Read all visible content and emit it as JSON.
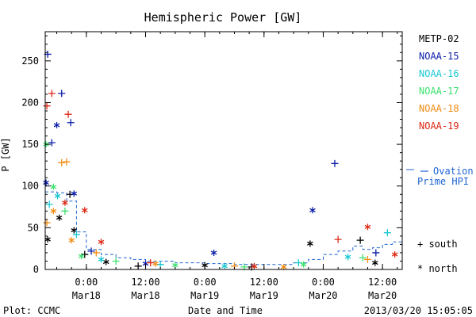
{
  "chart_data": {
    "type": "scatter",
    "title": "Hemispheric Power [GW]",
    "ylabel": "P [GW]",
    "xlabel": "Date and Time",
    "ylim": [
      0,
      285
    ],
    "xlim": [
      "2013-03-17 15:40",
      "2013-03-20 16:00"
    ],
    "yticks": [
      0,
      50,
      100,
      150,
      200,
      250
    ],
    "xticks": [
      {
        "t": "2013-03-18 00:00",
        "time": "0:00",
        "date": "Mar18"
      },
      {
        "t": "2013-03-18 12:00",
        "time": "12:00",
        "date": "Mar18"
      },
      {
        "t": "2013-03-19 00:00",
        "time": "0:00",
        "date": "Mar19"
      },
      {
        "t": "2013-03-19 12:00",
        "time": "12:00",
        "date": "Mar19"
      },
      {
        "t": "2013-03-20 00:00",
        "time": "0:00",
        "date": "Mar20"
      },
      {
        "t": "2013-03-20 12:00",
        "time": "12:00",
        "date": "Mar20"
      }
    ],
    "footer_left": "Plot: CCMC",
    "footer_right": "2013/03/20 15:05:05",
    "marker_legend": {
      "south": "+ south",
      "north": "* north"
    },
    "series": [
      {
        "name": "METP-02",
        "color": "#000000",
        "points": [
          {
            "t": "2013-03-17 16:10",
            "v": 36,
            "h": "n"
          },
          {
            "t": "2013-03-17 18:30",
            "v": 62,
            "h": "n"
          },
          {
            "t": "2013-03-17 20:40",
            "v": 90,
            "h": "s"
          },
          {
            "t": "2013-03-17 21:30",
            "v": 47,
            "h": "n"
          },
          {
            "t": "2013-03-17 23:40",
            "v": 18,
            "h": "s"
          },
          {
            "t": "2013-03-18 04:00",
            "v": 9,
            "h": "n"
          },
          {
            "t": "2013-03-18 10:30",
            "v": 4,
            "h": "s"
          },
          {
            "t": "2013-03-19 00:00",
            "v": 5,
            "h": "n"
          },
          {
            "t": "2013-03-19 09:30",
            "v": 3,
            "h": "s"
          },
          {
            "t": "2013-03-19 21:20",
            "v": 31,
            "h": "n"
          },
          {
            "t": "2013-03-20 07:30",
            "v": 35,
            "h": "s"
          },
          {
            "t": "2013-03-20 10:30",
            "v": 8,
            "h": "n"
          }
        ]
      },
      {
        "name": "NOAA-15",
        "color": "#0a1ca8",
        "points": [
          {
            "t": "2013-03-17 15:50",
            "v": 104,
            "h": "n"
          },
          {
            "t": "2013-03-17 16:10",
            "v": 258,
            "h": "s"
          },
          {
            "t": "2013-03-17 17:00",
            "v": 152,
            "h": "s"
          },
          {
            "t": "2013-03-17 18:00",
            "v": 173,
            "h": "n"
          },
          {
            "t": "2013-03-17 19:00",
            "v": 211,
            "h": "s"
          },
          {
            "t": "2013-03-17 20:50",
            "v": 176,
            "h": "s"
          },
          {
            "t": "2013-03-17 21:30",
            "v": 91,
            "h": "n"
          },
          {
            "t": "2013-03-18 01:00",
            "v": 22,
            "h": "s"
          },
          {
            "t": "2013-03-18 12:00",
            "v": 7,
            "h": "n"
          },
          {
            "t": "2013-03-19 01:50",
            "v": 20,
            "h": "n"
          },
          {
            "t": "2013-03-19 21:50",
            "v": 71,
            "h": "n"
          },
          {
            "t": "2013-03-20 02:20",
            "v": 127,
            "h": "s"
          },
          {
            "t": "2013-03-20 10:40",
            "v": 20,
            "h": "s"
          }
        ]
      },
      {
        "name": "NOAA-16",
        "color": "#19c8d2",
        "points": [
          {
            "t": "2013-03-17 16:30",
            "v": 78,
            "h": "s"
          },
          {
            "t": "2013-03-17 18:10",
            "v": 88,
            "h": "n"
          },
          {
            "t": "2013-03-17 22:00",
            "v": 42,
            "h": "s"
          },
          {
            "t": "2013-03-18 03:00",
            "v": 12,
            "h": "n"
          },
          {
            "t": "2013-03-18 15:00",
            "v": 6,
            "h": "s"
          },
          {
            "t": "2013-03-19 04:00",
            "v": 4,
            "h": "n"
          },
          {
            "t": "2013-03-19 19:00",
            "v": 8,
            "h": "s"
          },
          {
            "t": "2013-03-20 05:00",
            "v": 15,
            "h": "n"
          },
          {
            "t": "2013-03-20 13:00",
            "v": 44,
            "h": "s"
          }
        ]
      },
      {
        "name": "NOAA-17",
        "color": "#3de06e",
        "points": [
          {
            "t": "2013-03-17 15:50",
            "v": 150,
            "h": "n"
          },
          {
            "t": "2013-03-17 17:20",
            "v": 99,
            "h": "n"
          },
          {
            "t": "2013-03-17 19:40",
            "v": 70,
            "h": "s"
          },
          {
            "t": "2013-03-17 23:00",
            "v": 16,
            "h": "n"
          },
          {
            "t": "2013-03-18 06:00",
            "v": 10,
            "h": "s"
          },
          {
            "t": "2013-03-18 18:00",
            "v": 5,
            "h": "n"
          },
          {
            "t": "2013-03-19 08:00",
            "v": 3,
            "h": "s"
          },
          {
            "t": "2013-03-19 20:00",
            "v": 6,
            "h": "n"
          },
          {
            "t": "2013-03-20 08:00",
            "v": 14,
            "h": "s"
          }
        ]
      },
      {
        "name": "NOAA-18",
        "color": "#f08c14",
        "points": [
          {
            "t": "2013-03-17 16:00",
            "v": 56,
            "h": "s"
          },
          {
            "t": "2013-03-17 17:20",
            "v": 70,
            "h": "n"
          },
          {
            "t": "2013-03-17 19:00",
            "v": 128,
            "h": "s"
          },
          {
            "t": "2013-03-17 20:00",
            "v": 129,
            "h": "s"
          },
          {
            "t": "2013-03-17 21:00",
            "v": 35,
            "h": "n"
          },
          {
            "t": "2013-03-18 02:00",
            "v": 20,
            "h": "s"
          },
          {
            "t": "2013-03-18 14:00",
            "v": 7,
            "h": "n"
          },
          {
            "t": "2013-03-19 06:00",
            "v": 4,
            "h": "s"
          },
          {
            "t": "2013-03-19 16:00",
            "v": 3,
            "h": "n"
          },
          {
            "t": "2013-03-20 09:00",
            "v": 12,
            "h": "s"
          }
        ]
      },
      {
        "name": "NOAA-19",
        "color": "#dc2814",
        "points": [
          {
            "t": "2013-03-17 16:00",
            "v": 196,
            "h": "s"
          },
          {
            "t": "2013-03-17 17:00",
            "v": 211,
            "h": "s"
          },
          {
            "t": "2013-03-17 19:40",
            "v": 80,
            "h": "n"
          },
          {
            "t": "2013-03-17 20:20",
            "v": 186,
            "h": "s"
          },
          {
            "t": "2013-03-17 23:40",
            "v": 71,
            "h": "n"
          },
          {
            "t": "2013-03-18 03:00",
            "v": 33,
            "h": "n"
          },
          {
            "t": "2013-03-18 13:00",
            "v": 8,
            "h": "s"
          },
          {
            "t": "2013-03-19 10:00",
            "v": 4,
            "h": "n"
          },
          {
            "t": "2013-03-20 03:00",
            "v": 36,
            "h": "s"
          },
          {
            "t": "2013-03-20 09:00",
            "v": 51,
            "h": "n"
          },
          {
            "t": "2013-03-20 14:30",
            "v": 18,
            "h": "n"
          }
        ]
      }
    ],
    "ovation": {
      "label_line1": "Ovation",
      "label_line2": "Prime HPI",
      "color": "#1e64d2",
      "points": [
        [
          "2013-03-17 15:40",
          93
        ],
        [
          "2013-03-17 18:00",
          92
        ],
        [
          "2013-03-17 20:00",
          82
        ],
        [
          "2013-03-17 22:00",
          45
        ],
        [
          "2013-03-18 00:00",
          24
        ],
        [
          "2013-03-18 03:00",
          18
        ],
        [
          "2013-03-18 06:00",
          14
        ],
        [
          "2013-03-18 09:00",
          12
        ],
        [
          "2013-03-18 12:00",
          10
        ],
        [
          "2013-03-18 18:00",
          8
        ],
        [
          "2013-03-19 00:00",
          7
        ],
        [
          "2013-03-19 06:00",
          6
        ],
        [
          "2013-03-19 12:00",
          6
        ],
        [
          "2013-03-19 18:00",
          8
        ],
        [
          "2013-03-19 21:00",
          12
        ],
        [
          "2013-03-20 00:00",
          18
        ],
        [
          "2013-03-20 03:00",
          22
        ],
        [
          "2013-03-20 06:00",
          28
        ],
        [
          "2013-03-20 08:00",
          24
        ],
        [
          "2013-03-20 10:00",
          26
        ],
        [
          "2013-03-20 12:00",
          30
        ],
        [
          "2013-03-20 14:00",
          33
        ],
        [
          "2013-03-20 16:00",
          32
        ]
      ]
    }
  }
}
